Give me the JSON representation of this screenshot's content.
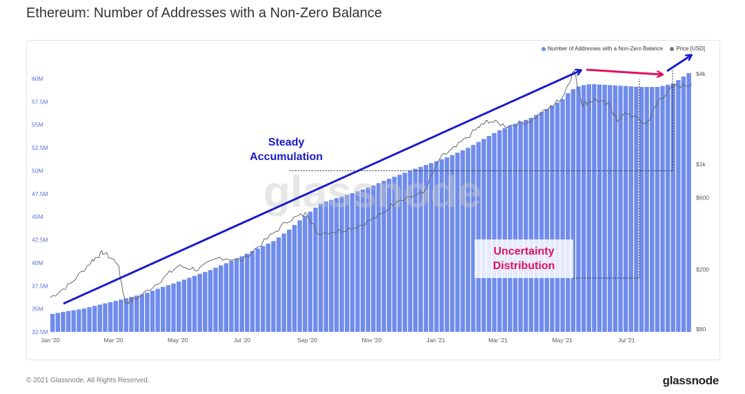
{
  "title": "Ethereum: Number of Addresses with a Non-Zero Balance",
  "footer": {
    "copyright": "© 2021 Glassnode. All Rights Reserved.",
    "logo": "glassnode"
  },
  "watermark": "glassnode",
  "annotations": {
    "steady": [
      "Steady",
      "Accumulation"
    ],
    "uncertainty": [
      "Uncertainty",
      "Distribution"
    ]
  },
  "colors": {
    "bars": "#6f8cec",
    "price": "#666666",
    "blue_arrow": "#1a1acc",
    "red_arrow": "#e0115f",
    "legend_addresses": "#6f8cec",
    "legend_price": "#777777"
  },
  "chart_data": {
    "type": "bar",
    "legend": [
      "Number of Addresses with a Non-Zero Balance",
      "Price [USD]"
    ],
    "legend_position": "top-right",
    "x_ticks": [
      "Jan '20",
      "Mar '20",
      "May '20",
      "Jul '20",
      "Sep '20",
      "Nov '20",
      "Jan '21",
      "Mar '21",
      "May '21",
      "Jul '21"
    ],
    "y_left": {
      "ticks": [
        "32.5M",
        "35M",
        "37.5M",
        "40M",
        "42.5M",
        "45M",
        "47.5M",
        "50M",
        "52.5M",
        "55M",
        "57.5M",
        "60M"
      ],
      "range": [
        32.5,
        61.8
      ]
    },
    "y_right": {
      "ticks": [
        "$80",
        "$200",
        "$600",
        "$1k",
        "$4k"
      ],
      "scale": "log"
    },
    "series": [
      {
        "name": "Number of Addresses with a Non-Zero Balance",
        "unit": "M",
        "x": [
          "2020-01-01",
          "2020-01-15",
          "2020-02-01",
          "2020-02-15",
          "2020-03-01",
          "2020-03-15",
          "2020-04-01",
          "2020-04-15",
          "2020-05-01",
          "2020-05-15",
          "2020-06-01",
          "2020-06-15",
          "2020-07-01",
          "2020-07-15",
          "2020-08-01",
          "2020-08-15",
          "2020-09-01",
          "2020-09-15",
          "2020-10-01",
          "2020-10-15",
          "2020-11-01",
          "2020-11-15",
          "2020-12-01",
          "2020-12-15",
          "2021-01-01",
          "2021-01-15",
          "2021-02-01",
          "2021-02-15",
          "2021-03-01",
          "2021-03-15",
          "2021-04-01",
          "2021-04-15",
          "2021-05-01",
          "2021-05-08",
          "2021-05-15",
          "2021-05-25",
          "2021-06-01",
          "2021-06-15",
          "2021-07-01",
          "2021-07-15",
          "2021-08-01",
          "2021-08-15",
          "2021-09-01"
        ],
        "values": [
          34.4,
          34.7,
          35.0,
          35.4,
          35.8,
          36.2,
          36.7,
          37.3,
          37.9,
          38.5,
          39.2,
          39.9,
          40.7,
          41.5,
          42.4,
          43.6,
          45.3,
          46.5,
          47.1,
          47.6,
          48.3,
          49.0,
          49.7,
          50.3,
          51.0,
          51.6,
          52.5,
          53.4,
          54.3,
          55.0,
          55.7,
          56.6,
          57.7,
          58.6,
          59.1,
          59.4,
          59.4,
          59.3,
          59.2,
          59.1,
          59.1,
          59.5,
          60.8
        ]
      },
      {
        "name": "Price [USD]",
        "x": [
          "2020-01-01",
          "2020-01-20",
          "2020-02-10",
          "2020-02-20",
          "2020-03-05",
          "2020-03-12",
          "2020-03-25",
          "2020-04-15",
          "2020-05-01",
          "2020-05-20",
          "2020-06-10",
          "2020-07-01",
          "2020-07-25",
          "2020-08-15",
          "2020-09-01",
          "2020-09-10",
          "2020-10-01",
          "2020-10-20",
          "2020-11-10",
          "2020-11-25",
          "2020-12-20",
          "2021-01-05",
          "2021-01-20",
          "2021-02-10",
          "2021-02-20",
          "2021-03-10",
          "2021-04-01",
          "2021-04-20",
          "2021-05-01",
          "2021-05-12",
          "2021-05-20",
          "2021-06-01",
          "2021-06-15",
          "2021-06-22",
          "2021-07-01",
          "2021-07-20",
          "2021-08-01",
          "2021-08-15",
          "2021-09-01"
        ],
        "values": [
          130,
          160,
          230,
          260,
          220,
          120,
          130,
          170,
          210,
          200,
          240,
          230,
          320,
          430,
          470,
          350,
          360,
          390,
          460,
          580,
          640,
          1100,
          1300,
          1750,
          1950,
          1800,
          1950,
          2400,
          2800,
          4200,
          2500,
          2700,
          2450,
          1950,
          2200,
          1850,
          2700,
          3300,
          3400
        ]
      }
    ],
    "reference_lines": [
      {
        "type": "dotted-horizontal",
        "y_million": 50.0,
        "from": "2020-08-15",
        "to": "2021-09-01"
      },
      {
        "type": "dotted-horizontal",
        "y_price": 160,
        "from": "2021-03-25",
        "to": "2021-06-30"
      },
      {
        "type": "dotted-vertical",
        "x": "2021-06-30"
      },
      {
        "type": "dotted-vertical",
        "x": "2021-08-25"
      }
    ]
  }
}
